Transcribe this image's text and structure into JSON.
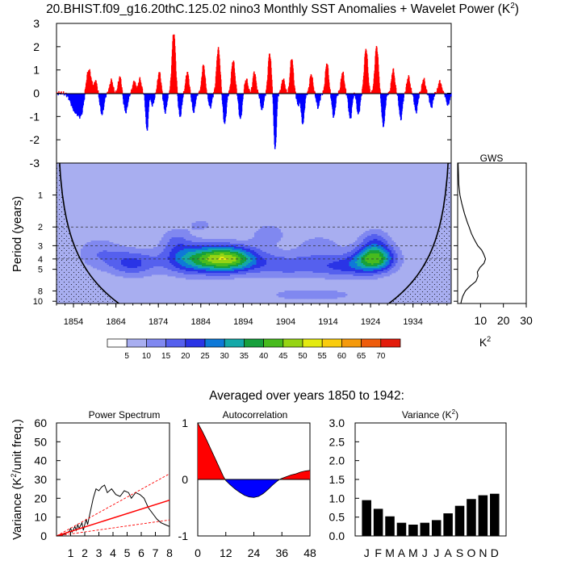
{
  "figure": {
    "title_main": "20.BHIST.f09_g16.20thC.125.02 nino3 Monthly SST Anomalies + Wavelet Power (K",
    "title_sup": "2",
    "title_end": ")",
    "averaged_label": "Averaged over years 1850 to 1942:"
  },
  "colors": {
    "positive": "#ff0000",
    "negative": "#0000ff",
    "wavelet_base": "#a8aef0"
  },
  "chart_data": [
    {
      "id": "anomaly",
      "type": "bar",
      "title": "nino3 Monthly SST Anomalies",
      "ylabel": "",
      "ylim": [
        -3,
        3
      ],
      "yticks": [
        -3,
        -2,
        -1,
        0,
        1,
        2,
        3
      ],
      "xlim": [
        1850,
        1943
      ],
      "events": [
        {
          "year": 1854.5,
          "amp": -0.8,
          "width": 1.4
        },
        {
          "year": 1855.8,
          "amp": -0.6,
          "width": 0.8
        },
        {
          "year": 1857.6,
          "amp": 1.0,
          "width": 0.8
        },
        {
          "year": 1859.2,
          "amp": 0.5,
          "width": 0.5
        },
        {
          "year": 1860.7,
          "amp": -0.9,
          "width": 0.6
        },
        {
          "year": 1862.9,
          "amp": 0.55,
          "width": 0.5
        },
        {
          "year": 1864.9,
          "amp": 0.7,
          "width": 0.5
        },
        {
          "year": 1866.3,
          "amp": -0.8,
          "width": 0.6
        },
        {
          "year": 1868.3,
          "amp": 0.5,
          "width": 0.5
        },
        {
          "year": 1869.6,
          "amp": 0.6,
          "width": 0.5
        },
        {
          "year": 1871.3,
          "amp": -1.6,
          "width": 0.4
        },
        {
          "year": 1872.6,
          "amp": -0.5,
          "width": 0.5
        },
        {
          "year": 1874.2,
          "amp": 0.9,
          "width": 0.5
        },
        {
          "year": 1875.6,
          "amp": -0.8,
          "width": 0.5
        },
        {
          "year": 1877.6,
          "amp": 2.6,
          "width": 0.55
        },
        {
          "year": 1879.1,
          "amp": -1.0,
          "width": 0.5
        },
        {
          "year": 1880.8,
          "amp": 0.9,
          "width": 0.5
        },
        {
          "year": 1882.3,
          "amp": -0.8,
          "width": 0.5
        },
        {
          "year": 1884.6,
          "amp": 1.2,
          "width": 0.5
        },
        {
          "year": 1886.2,
          "amp": -0.6,
          "width": 0.5
        },
        {
          "year": 1888.1,
          "amp": 1.9,
          "width": 0.55
        },
        {
          "year": 1889.6,
          "amp": -1.3,
          "width": 0.5
        },
        {
          "year": 1891.6,
          "amp": 1.4,
          "width": 0.55
        },
        {
          "year": 1893.3,
          "amp": -1.1,
          "width": 0.5
        },
        {
          "year": 1894.7,
          "amp": 0.6,
          "width": 0.5
        },
        {
          "year": 1896.6,
          "amp": 0.9,
          "width": 0.5
        },
        {
          "year": 1898.4,
          "amp": -0.7,
          "width": 0.5
        },
        {
          "year": 1900.2,
          "amp": 1.7,
          "width": 0.5
        },
        {
          "year": 1901.5,
          "amp": -2.4,
          "width": 0.4
        },
        {
          "year": 1903.4,
          "amp": 0.6,
          "width": 0.5
        },
        {
          "year": 1905.4,
          "amp": 1.5,
          "width": 0.5
        },
        {
          "year": 1906.9,
          "amp": -0.5,
          "width": 0.4
        },
        {
          "year": 1908.0,
          "amp": -1.3,
          "width": 0.5
        },
        {
          "year": 1910.0,
          "amp": 0.8,
          "width": 0.5
        },
        {
          "year": 1911.6,
          "amp": -0.6,
          "width": 0.5
        },
        {
          "year": 1913.7,
          "amp": 1.3,
          "width": 0.5
        },
        {
          "year": 1915.3,
          "amp": -1.0,
          "width": 0.5
        },
        {
          "year": 1917.4,
          "amp": 0.9,
          "width": 0.5
        },
        {
          "year": 1919.2,
          "amp": -1.1,
          "width": 0.5
        },
        {
          "year": 1921.1,
          "amp": -0.9,
          "width": 0.5
        },
        {
          "year": 1922.9,
          "amp": 1.9,
          "width": 0.55
        },
        {
          "year": 1925.4,
          "amp": 2.0,
          "width": 0.55
        },
        {
          "year": 1927.0,
          "amp": -1.4,
          "width": 0.5
        },
        {
          "year": 1929.3,
          "amp": 1.0,
          "width": 0.5
        },
        {
          "year": 1931.1,
          "amp": -1.1,
          "width": 0.5
        },
        {
          "year": 1932.9,
          "amp": 0.7,
          "width": 0.5
        },
        {
          "year": 1934.7,
          "amp": -0.8,
          "width": 0.5
        },
        {
          "year": 1936.5,
          "amp": 0.6,
          "width": 0.5
        },
        {
          "year": 1938.3,
          "amp": -0.6,
          "width": 0.5
        },
        {
          "year": 1940.3,
          "amp": 0.5,
          "width": 0.5
        },
        {
          "year": 1942.2,
          "amp": -0.5,
          "width": 0.5
        }
      ]
    },
    {
      "id": "wavelet",
      "type": "heatmap",
      "ylabel": "Period (years)",
      "yticks": [
        1,
        2,
        3,
        4,
        5,
        8,
        10
      ],
      "ylim": [
        0.5,
        10.5
      ],
      "xlim": [
        1850,
        1943
      ],
      "xticks": [
        1854,
        1864,
        1874,
        1884,
        1894,
        1904,
        1914,
        1924,
        1934
      ],
      "dashed_periods": [
        2,
        3,
        4
      ],
      "levels": [
        0,
        5,
        10,
        15,
        20,
        25,
        30,
        35,
        40,
        45,
        50,
        55,
        60,
        65,
        70
      ],
      "level_colors": [
        "#ffffff",
        "#a8aef0",
        "#8088f0",
        "#5560ee",
        "#2a34e6",
        "#0e79d8",
        "#14a8a8",
        "#17a03c",
        "#48bb1e",
        "#96d414",
        "#e3ea10",
        "#f9cc0e",
        "#f59a0c",
        "#ee5c0c",
        "#e31c0c"
      ],
      "blobs": [
        {
          "year": 1890,
          "period": 4.0,
          "amp": 42,
          "sy": 5.0,
          "sp": 0.2
        },
        {
          "year": 1881,
          "period": 4.0,
          "amp": 20,
          "sy": 4.5,
          "sp": 0.24
        },
        {
          "year": 1925,
          "period": 3.9,
          "amp": 35,
          "sy": 3.3,
          "sp": 0.2
        },
        {
          "year": 1918,
          "period": 4.7,
          "amp": 15,
          "sy": 5.5,
          "sp": 0.18
        },
        {
          "year": 1904,
          "period": 4.6,
          "amp": 12,
          "sy": 6.0,
          "sp": 0.2
        },
        {
          "year": 1868,
          "period": 4.4,
          "amp": 16,
          "sy": 4.0,
          "sp": 0.2
        },
        {
          "year": 1860,
          "period": 3.5,
          "amp": 9,
          "sy": 4.0,
          "sp": 0.25
        },
        {
          "year": 1878,
          "period": 2.6,
          "amp": 8,
          "sy": 2.5,
          "sp": 0.2
        },
        {
          "year": 1900,
          "period": 2.3,
          "amp": 7,
          "sy": 3.5,
          "sp": 0.2
        },
        {
          "year": 1884,
          "period": 1.9,
          "amp": 6,
          "sy": 2.5,
          "sp": 0.12
        },
        {
          "year": 1925,
          "period": 2.6,
          "amp": 10,
          "sy": 2.5,
          "sp": 0.18
        },
        {
          "year": 1912,
          "period": 3.0,
          "amp": 7,
          "sy": 4.0,
          "sp": 0.2
        },
        {
          "year": 1910,
          "period": 8.7,
          "amp": 7,
          "sy": 10.0,
          "sp": 0.12
        }
      ]
    },
    {
      "id": "gws",
      "type": "line",
      "title": "GWS",
      "xlabel": "K",
      "xlabel_sup": "2",
      "xlim": [
        0,
        30
      ],
      "xticks": [
        10,
        20,
        30
      ],
      "period": [
        0.5,
        0.8,
        1.0,
        1.2,
        1.5,
        1.8,
        2.0,
        2.3,
        2.6,
        3.0,
        3.3,
        3.6,
        4.0,
        4.4,
        4.8,
        5.3,
        5.8,
        6.5,
        7.2,
        8.0,
        9.0,
        10.0,
        10.5
      ],
      "power": [
        0.2,
        0.5,
        1.0,
        1.8,
        3.0,
        4.2,
        5.0,
        6.0,
        7.2,
        8.8,
        10.5,
        11.4,
        12.2,
        11.5,
        9.8,
        8.6,
        8.9,
        8.0,
        5.5,
        3.4,
        2.2,
        1.6,
        1.4
      ]
    },
    {
      "id": "power_spectrum",
      "type": "line",
      "title": "Power Spectrum",
      "ylabel": "Variance (K",
      "ylabel_sup": "2",
      "ylabel_end": "/unit freq.)",
      "xlim": [
        0,
        8
      ],
      "ylim": [
        0,
        60
      ],
      "xticks": [
        1,
        2,
        3,
        4,
        5,
        6,
        7,
        8
      ],
      "yticks": [
        0,
        10,
        20,
        30,
        40,
        50,
        60
      ],
      "series": [
        {
          "name": "spectrum",
          "x": [
            0.0,
            0.3,
            0.6,
            0.9,
            1.0,
            1.1,
            1.3,
            1.4,
            1.5,
            1.6,
            1.8,
            1.9,
            2.0,
            2.1,
            2.2,
            2.4,
            2.6,
            2.8,
            3.0,
            3.2,
            3.4,
            3.6,
            3.9,
            4.2,
            4.5,
            4.8,
            5.1,
            5.3,
            5.6,
            5.9,
            6.2,
            6.5,
            6.8,
            7.1,
            7.4,
            7.7,
            8.0
          ],
          "y": [
            0,
            0.3,
            1,
            2.5,
            4,
            2,
            5,
            3,
            6,
            4,
            7,
            3,
            6,
            9,
            6,
            13,
            20,
            25,
            24,
            26,
            27,
            23,
            25,
            22,
            21,
            24,
            23,
            20,
            23,
            22,
            20,
            15,
            12,
            9,
            7,
            6,
            5
          ]
        },
        {
          "name": "red noise",
          "x": [
            0,
            8
          ],
          "y": [
            0,
            19
          ]
        },
        {
          "name": "95% upper",
          "x": [
            0,
            8
          ],
          "y": [
            0,
            33
          ]
        },
        {
          "name": "5% lower",
          "x": [
            0,
            8
          ],
          "y": [
            0,
            8.5
          ]
        }
      ]
    },
    {
      "id": "autocorrelation",
      "type": "area",
      "title": "Autocorrelation",
      "xlim": [
        0,
        48
      ],
      "ylim": [
        -1,
        1
      ],
      "xticks": [
        0,
        12,
        24,
        36,
        48
      ],
      "yticks": [
        -1,
        0,
        1
      ],
      "x": [
        0,
        2,
        4,
        6,
        8,
        10,
        11,
        12,
        14,
        16,
        18,
        20,
        22,
        24,
        26,
        28,
        30,
        32,
        34,
        35,
        36,
        38,
        40,
        42,
        44,
        46,
        48
      ],
      "y": [
        1.0,
        0.85,
        0.68,
        0.5,
        0.32,
        0.14,
        0.05,
        -0.02,
        -0.1,
        -0.17,
        -0.23,
        -0.28,
        -0.31,
        -0.32,
        -0.3,
        -0.25,
        -0.18,
        -0.1,
        -0.03,
        0.0,
        0.02,
        0.05,
        0.08,
        0.1,
        0.13,
        0.15,
        0.16
      ]
    },
    {
      "id": "variance",
      "type": "bar",
      "title": "Variance (K",
      "title_sup": "2",
      "title_end": ")",
      "categories": [
        "J",
        "F",
        "M",
        "A",
        "M",
        "J",
        "J",
        "A",
        "S",
        "O",
        "N",
        "D"
      ],
      "values": [
        0.95,
        0.72,
        0.52,
        0.35,
        0.3,
        0.35,
        0.42,
        0.6,
        0.8,
        0.98,
        1.08,
        1.12
      ],
      "ylim": [
        0,
        3
      ],
      "yticks": [
        "0.0",
        "0.5",
        "1.0",
        "1.5",
        "2.0",
        "2.5",
        "3.0"
      ]
    }
  ]
}
